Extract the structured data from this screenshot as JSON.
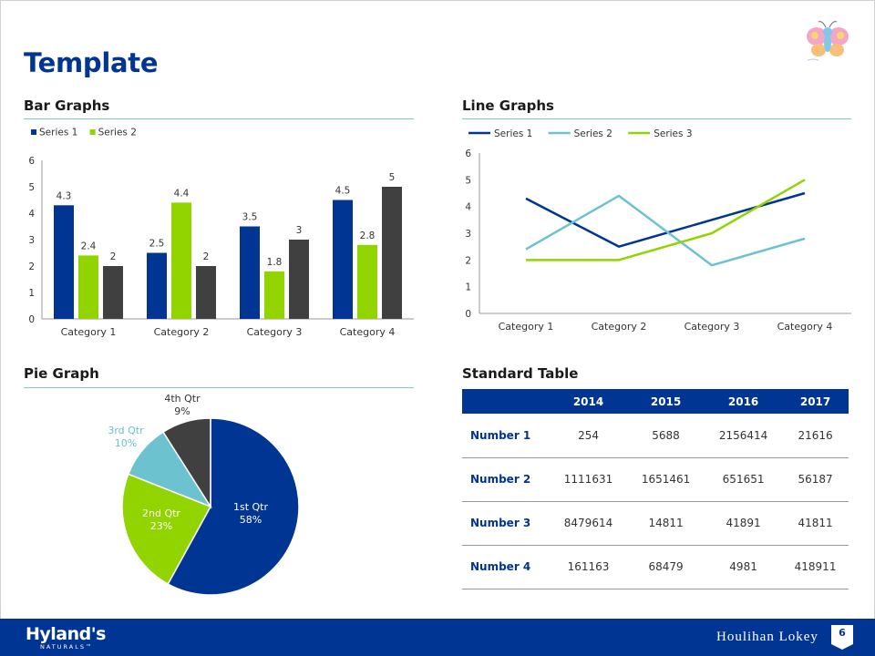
{
  "page": {
    "title": "Template",
    "page_number": "6"
  },
  "brand": {
    "left_name": "Hyland's",
    "left_sub": "NATURALS™",
    "right_name": "Houlihan Lokey"
  },
  "sections": {
    "bar": "Bar Graphs",
    "line": "Line Graphs",
    "pie": "Pie Graph",
    "table": "Standard Table"
  },
  "colors": {
    "navy": "#003594",
    "green": "#92d400",
    "dark_gray": "#404040",
    "teal": "#6cc2cf",
    "rule": "#7cc6cf"
  },
  "chart_data": [
    {
      "type": "bar",
      "title": "Bar Graphs",
      "categories": [
        "Category 1",
        "Category 2",
        "Category 3",
        "Category 4"
      ],
      "series": [
        {
          "name": "Series 1",
          "values": [
            4.3,
            2.5,
            3.5,
            4.5
          ],
          "color": "#003594"
        },
        {
          "name": "Series 2",
          "values": [
            2.4,
            4.4,
            1.8,
            2.8
          ],
          "color": "#92d400"
        },
        {
          "values": [
            2,
            2,
            3,
            5
          ],
          "color": "#404040"
        }
      ],
      "ylim": [
        0,
        6
      ],
      "yticks": [
        "0",
        "1",
        "2",
        "3",
        "4",
        "5",
        "6"
      ],
      "data_labels": true,
      "legend": "top-left",
      "grid": false
    },
    {
      "type": "line",
      "title": "Line Graphs",
      "categories": [
        "Category 1",
        "Category 2",
        "Category 3",
        "Category 4"
      ],
      "series": [
        {
          "name": "Series 1",
          "values": [
            4.3,
            2.5,
            3.5,
            4.5
          ],
          "color": "#003594"
        },
        {
          "name": "Series 2",
          "values": [
            2.4,
            4.4,
            1.8,
            2.8
          ],
          "color": "#6cc2cf"
        },
        {
          "name": "Series 3",
          "values": [
            2,
            2,
            3,
            5
          ],
          "color": "#92d400"
        }
      ],
      "ylim": [
        0,
        6
      ],
      "yticks": [
        "0",
        "1",
        "2",
        "3",
        "4",
        "5",
        "6"
      ],
      "legend": "top-left",
      "grid": false
    },
    {
      "type": "pie",
      "title": "Pie Graph",
      "slices": [
        {
          "label": "1st Qtr",
          "pct_label": "58%",
          "value": 58,
          "color": "#003594",
          "label_color": "#ffffff"
        },
        {
          "label": "2nd Qtr",
          "pct_label": "23%",
          "value": 23,
          "color": "#92d400",
          "label_color": "#ffffff"
        },
        {
          "label": "3rd Qtr",
          "pct_label": "10%",
          "value": 10,
          "color": "#6cc2cf",
          "label_color": "#6cc2cf"
        },
        {
          "label": "4th Qtr",
          "pct_label": "9%",
          "value": 9,
          "color": "#404040",
          "label_color": "#333333"
        }
      ]
    },
    {
      "type": "table",
      "title": "Standard Table",
      "columns": [
        "",
        "2014",
        "2015",
        "2016",
        "2017"
      ],
      "rows": [
        {
          "label": "Number 1",
          "values": [
            "254",
            "5688",
            "2156414",
            "21616"
          ]
        },
        {
          "label": "Number 2",
          "values": [
            "1111631",
            "1651461",
            "651651",
            "56187"
          ]
        },
        {
          "label": "Number 3",
          "values": [
            "8479614",
            "14811",
            "41891",
            "41811"
          ]
        },
        {
          "label": "Number 4",
          "values": [
            "161163",
            "68479",
            "4981",
            "418911"
          ]
        }
      ]
    }
  ]
}
